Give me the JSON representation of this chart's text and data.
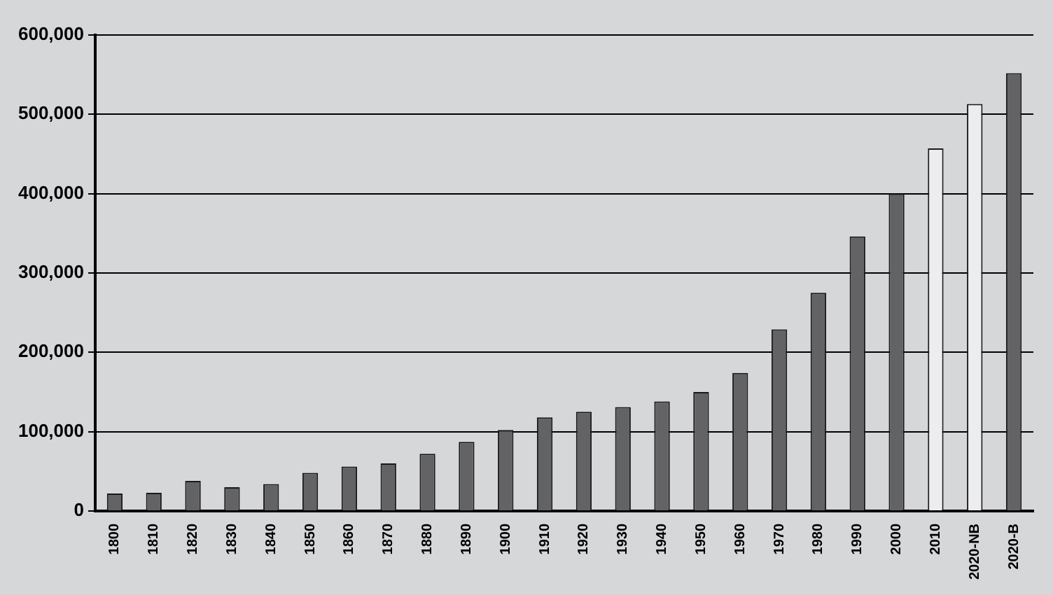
{
  "chart_data": {
    "type": "bar",
    "categories": [
      "1800",
      "1810",
      "1820",
      "1830",
      "1840",
      "1850",
      "1860",
      "1870",
      "1880",
      "1890",
      "1900",
      "1910",
      "1920",
      "1930",
      "1940",
      "1950",
      "1960",
      "1970",
      "1980",
      "1990",
      "2000",
      "2010",
      "2020-NB",
      "2020-B"
    ],
    "values": [
      22000,
      23000,
      38000,
      30000,
      34000,
      48000,
      56000,
      60000,
      72000,
      87000,
      102000,
      118000,
      125000,
      131000,
      138000,
      150000,
      174000,
      229000,
      275000,
      346000,
      400000,
      457000,
      513000,
      552000
    ],
    "colors": [
      "#636366",
      "#636366",
      "#636366",
      "#636366",
      "#636366",
      "#636366",
      "#636366",
      "#636366",
      "#636366",
      "#636366",
      "#636366",
      "#636366",
      "#636366",
      "#636366",
      "#636366",
      "#636366",
      "#636366",
      "#636366",
      "#636366",
      "#636366",
      "#636366",
      "#ededef",
      "#ededef",
      "#636366"
    ],
    "ylim": [
      0,
      600000
    ],
    "yticks": [
      0,
      {
        "value": 100000,
        "label": "100,000"
      },
      {
        "value": 200000,
        "label": "200,000"
      },
      {
        "value": 300000,
        "label": "300,000"
      },
      {
        "value": 400000,
        "label": "400,000"
      },
      {
        "value": 500000,
        "label": "500,000"
      },
      {
        "value": 600000,
        "label": "600,000"
      }
    ],
    "grid": "y"
  }
}
